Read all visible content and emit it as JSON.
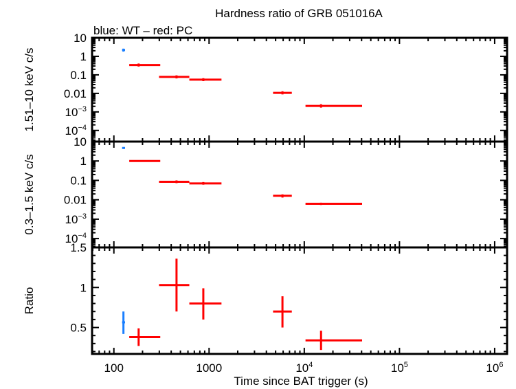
{
  "chart_data": [
    {
      "type": "scatter",
      "title": "Hardness ratio of GRB 051016A",
      "subtitle": "blue: WT – red: PC",
      "ylabel": "1.51–10 keV c/s",
      "yscale": "log",
      "ylim": [
        2.5e-05,
        10
      ],
      "yticks": [
        {
          "v": 10,
          "t": "10"
        },
        {
          "v": 1,
          "t": "1"
        },
        {
          "v": 0.1,
          "t": "0.1"
        },
        {
          "v": 0.01,
          "t": "0.01"
        },
        {
          "v": 0.001,
          "t": "10",
          "sup": "−3"
        },
        {
          "v": 0.0001,
          "t": "10",
          "sup": "−4"
        }
      ],
      "series": [
        {
          "color": "#1a7fff",
          "points": [
            {
              "x": 126,
              "xlo": 122,
              "xhi": 131,
              "y": 2.2,
              "ylo": 1.8,
              "yhi": 2.6
            }
          ]
        },
        {
          "color": "#ff0000",
          "points": [
            {
              "x": 182,
              "xlo": 145,
              "xhi": 307,
              "y": 0.34,
              "ylo": 0.28,
              "yhi": 0.41
            },
            {
              "x": 455,
              "xlo": 298,
              "xhi": 620,
              "y": 0.078,
              "ylo": 0.064,
              "yhi": 0.094
            },
            {
              "x": 870,
              "xlo": 620,
              "xhi": 1350,
              "y": 0.055,
              "ylo": 0.046,
              "yhi": 0.066
            },
            {
              "x": 5900,
              "xlo": 4700,
              "xhi": 7400,
              "y": 0.0107,
              "ylo": 0.0088,
              "yhi": 0.013
            },
            {
              "x": 15000,
              "xlo": 10300,
              "xhi": 40500,
              "y": 0.0021,
              "ylo": 0.0017,
              "yhi": 0.0026
            }
          ]
        }
      ]
    },
    {
      "type": "scatter",
      "ylabel": "0.3–1.5 keV c/s",
      "yscale": "log",
      "ylim": [
        3.5e-05,
        10
      ],
      "yticks": [
        {
          "v": 10,
          "t": "10"
        },
        {
          "v": 1,
          "t": "1"
        },
        {
          "v": 0.1,
          "t": "0.1"
        },
        {
          "v": 0.01,
          "t": "0.01"
        },
        {
          "v": 0.001,
          "t": "10",
          "sup": "−3"
        },
        {
          "v": 0.0001,
          "t": "10",
          "sup": "−4"
        }
      ],
      "series": [
        {
          "color": "#1a7fff",
          "points": [
            {
              "x": 126,
              "xlo": 122,
              "xhi": 131,
              "y": 4.7,
              "ylo": 4.2,
              "yhi": 5.2
            }
          ]
        },
        {
          "color": "#ff0000",
          "points": [
            {
              "x": 182,
              "xlo": 145,
              "xhi": 307,
              "y": 1.0,
              "ylo": 0.9,
              "yhi": 1.1
            },
            {
              "x": 455,
              "xlo": 298,
              "xhi": 620,
              "y": 0.085,
              "ylo": 0.072,
              "yhi": 0.1
            },
            {
              "x": 870,
              "xlo": 620,
              "xhi": 1350,
              "y": 0.07,
              "ylo": 0.06,
              "yhi": 0.082
            },
            {
              "x": 5900,
              "xlo": 4700,
              "xhi": 7400,
              "y": 0.016,
              "ylo": 0.013,
              "yhi": 0.019
            },
            {
              "x": 15000,
              "xlo": 10300,
              "xhi": 40500,
              "y": 0.0062,
              "ylo": 0.0054,
              "yhi": 0.0071
            }
          ]
        }
      ]
    },
    {
      "type": "scatter",
      "ylabel": "Ratio",
      "yscale": "linear",
      "ylim": [
        0.17,
        1.5
      ],
      "yticks": [
        {
          "v": 1.5,
          "t": "1.5"
        },
        {
          "v": 1,
          "t": "1"
        },
        {
          "v": 0.5,
          "t": "0.5"
        }
      ],
      "xlabel": "Time since BAT trigger (s)",
      "series": [
        {
          "color": "#1a7fff",
          "points": [
            {
              "x": 126,
              "xlo": 122,
              "xhi": 131,
              "y": 0.565,
              "ylo": 0.42,
              "yhi": 0.7
            }
          ]
        },
        {
          "color": "#ff0000",
          "points": [
            {
              "x": 182,
              "xlo": 145,
              "xhi": 307,
              "y": 0.38,
              "ylo": 0.27,
              "yhi": 0.49
            },
            {
              "x": 455,
              "xlo": 298,
              "xhi": 620,
              "y": 1.03,
              "ylo": 0.7,
              "yhi": 1.36
            },
            {
              "x": 870,
              "xlo": 620,
              "xhi": 1350,
              "y": 0.8,
              "ylo": 0.6,
              "yhi": 0.99
            },
            {
              "x": 5900,
              "xlo": 4700,
              "xhi": 7400,
              "y": 0.7,
              "ylo": 0.5,
              "yhi": 0.89
            },
            {
              "x": 15000,
              "xlo": 10300,
              "xhi": 40500,
              "y": 0.34,
              "ylo": 0.22,
              "yhi": 0.46
            }
          ]
        }
      ]
    }
  ],
  "xaxis": {
    "scale": "log",
    "xlim": [
      59,
      1350000
    ],
    "ticks": [
      {
        "v": 100,
        "t": "100"
      },
      {
        "v": 1000,
        "t": "1000"
      },
      {
        "v": 10000,
        "t": "10",
        "sup": "4"
      },
      {
        "v": 100000,
        "t": "10",
        "sup": "5"
      },
      {
        "v": 1000000,
        "t": "10",
        "sup": "6"
      }
    ]
  }
}
